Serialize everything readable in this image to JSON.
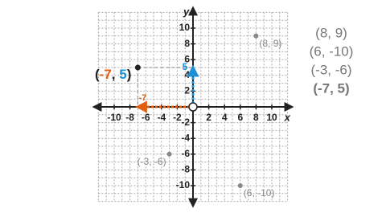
{
  "chart_data": {
    "type": "scatter",
    "x_label": "x",
    "y_label": "y",
    "xlim": [
      -12,
      12
    ],
    "ylim": [
      -12,
      12
    ],
    "xticks": [
      -10,
      -8,
      -6,
      -4,
      -2,
      2,
      4,
      6,
      8,
      10
    ],
    "yticks": [
      -10,
      -8,
      -6,
      -4,
      -2,
      2,
      4,
      6,
      8,
      10
    ],
    "grid": true,
    "series": [
      {
        "color": "#888888",
        "x": [
          8,
          6,
          -3
        ],
        "values": [
          9,
          -10,
          -6
        ],
        "point_labels": [
          "(8, 9)",
          "(6, -10)",
          "(-3, -6)"
        ]
      }
    ],
    "highlight": {
      "x": -7,
      "y": 5,
      "color": "#222222",
      "x_color": "#e0600f",
      "y_color": "#1e90d6",
      "label_parts": [
        "(",
        "-7",
        ", ",
        "5",
        ")"
      ]
    },
    "coordinate_list": [
      "(8, 9)",
      "(6, -10)",
      "(-3, -6)",
      "(-7, 5)"
    ]
  }
}
